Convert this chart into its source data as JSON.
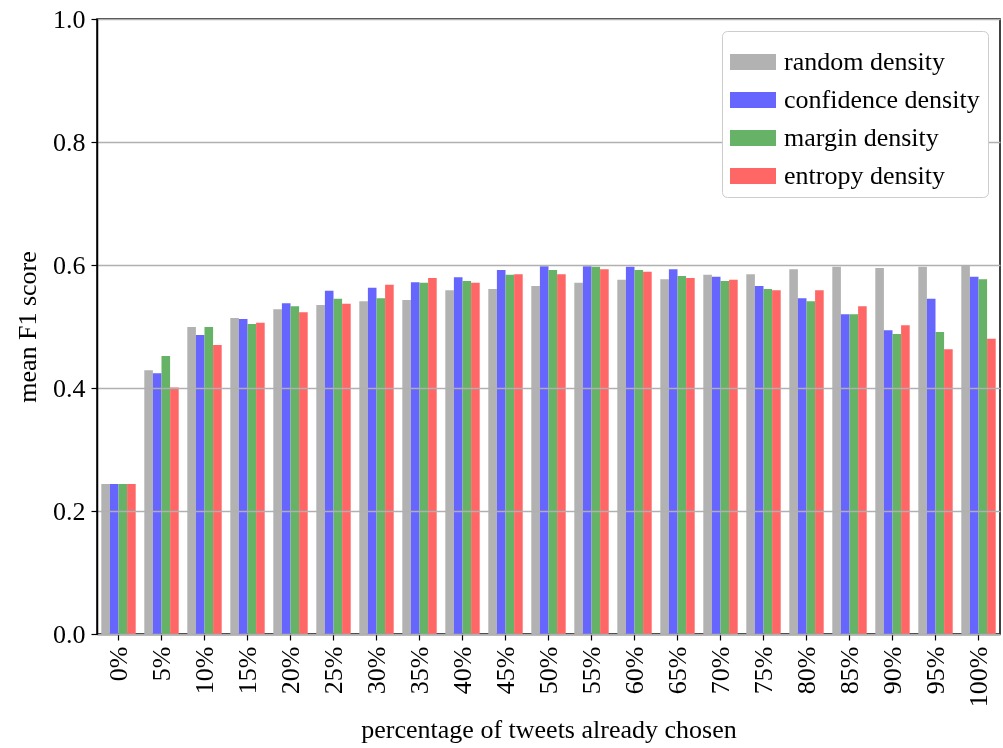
{
  "chart_data": {
    "type": "bar",
    "xlabel": "percentage of tweets already chosen",
    "ylabel": "mean F1 score",
    "categories": [
      "0%",
      "5%",
      "10%",
      "15%",
      "20%",
      "25%",
      "30%",
      "35%",
      "40%",
      "45%",
      "50%",
      "55%",
      "60%",
      "65%",
      "70%",
      "75%",
      "80%",
      "85%",
      "90%",
      "95%",
      "100%"
    ],
    "series": [
      {
        "name": "random density",
        "color": "#b2b2b2",
        "values": [
          0.244,
          0.429,
          0.499,
          0.514,
          0.528,
          0.535,
          0.541,
          0.543,
          0.559,
          0.561,
          0.566,
          0.571,
          0.576,
          0.577,
          0.584,
          0.585,
          0.593,
          0.597,
          0.595,
          0.597,
          0.6
        ]
      },
      {
        "name": "confidence density",
        "color": "#6666ff",
        "values": [
          0.244,
          0.424,
          0.486,
          0.512,
          0.538,
          0.558,
          0.563,
          0.572,
          0.58,
          0.592,
          0.598,
          0.598,
          0.597,
          0.593,
          0.581,
          0.566,
          0.546,
          0.52,
          0.494,
          0.545,
          0.581
        ]
      },
      {
        "name": "margin density",
        "color": "#66b266",
        "values": [
          0.244,
          0.452,
          0.499,
          0.504,
          0.533,
          0.545,
          0.546,
          0.571,
          0.574,
          0.584,
          0.592,
          0.597,
          0.592,
          0.582,
          0.574,
          0.561,
          0.541,
          0.52,
          0.488,
          0.491,
          0.577
        ]
      },
      {
        "name": "entropy density",
        "color": "#ff6666",
        "values": [
          0.244,
          0.401,
          0.47,
          0.506,
          0.523,
          0.537,
          0.568,
          0.579,
          0.571,
          0.585,
          0.585,
          0.593,
          0.589,
          0.579,
          0.576,
          0.559,
          0.559,
          0.533,
          0.502,
          0.463,
          0.48
        ]
      }
    ],
    "ylim": [
      0,
      1
    ],
    "yticks": [
      {
        "value": 0,
        "label": "0.0"
      },
      0.2,
      0.4,
      0.6,
      0.8,
      {
        "value": 1,
        "label": "1.0"
      }
    ],
    "grid": "y",
    "legend": "top right"
  }
}
